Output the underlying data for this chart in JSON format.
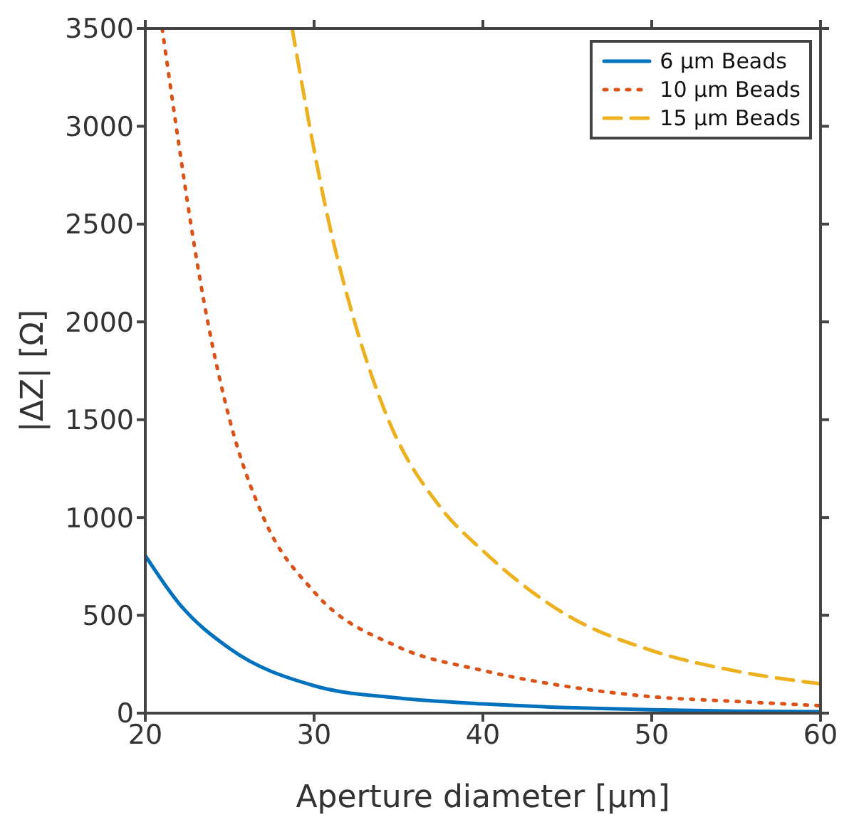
{
  "chart_data": {
    "type": "line",
    "xlabel": "Aperture diameter [µm]",
    "ylabel": "|ΔZ| [Ω]",
    "xlim": [
      20,
      60
    ],
    "xticks": [
      20,
      30,
      40,
      50,
      60
    ],
    "ylim": [
      0,
      3500
    ],
    "yticks": [
      0,
      500,
      1000,
      1500,
      2000,
      2500,
      3000,
      3500
    ],
    "grid": false,
    "legend": "top right",
    "marker": "none",
    "series": [
      {
        "name": "6 µm Beads",
        "color": "#0072bd",
        "line_style": "solid",
        "x": [
          20,
          22,
          25,
          30,
          35,
          40,
          45,
          50,
          55,
          60
        ],
        "values": [
          805,
          560,
          330,
          140,
          77,
          47,
          28,
          17,
          10,
          7
        ]
      },
      {
        "name": "10 µm Beads",
        "color": "#d95319",
        "line_style": "dotted",
        "x": [
          21,
          22,
          22.7,
          23.7,
          25,
          27,
          30,
          35,
          40,
          45,
          50,
          55,
          60
        ],
        "values": [
          3500,
          2900,
          2500,
          2000,
          1500,
          1000,
          620,
          338,
          218,
          136,
          84,
          60,
          38
        ]
      },
      {
        "name": "15 µm Beads",
        "color": "#edb120",
        "line_style": "dashed",
        "x": [
          28.7,
          30.9,
          32.4,
          34.4,
          37.5,
          40,
          45,
          50,
          55,
          60
        ],
        "values": [
          3500,
          2500,
          2000,
          1500,
          1050,
          830,
          500,
          320,
          215,
          150
        ]
      }
    ]
  }
}
